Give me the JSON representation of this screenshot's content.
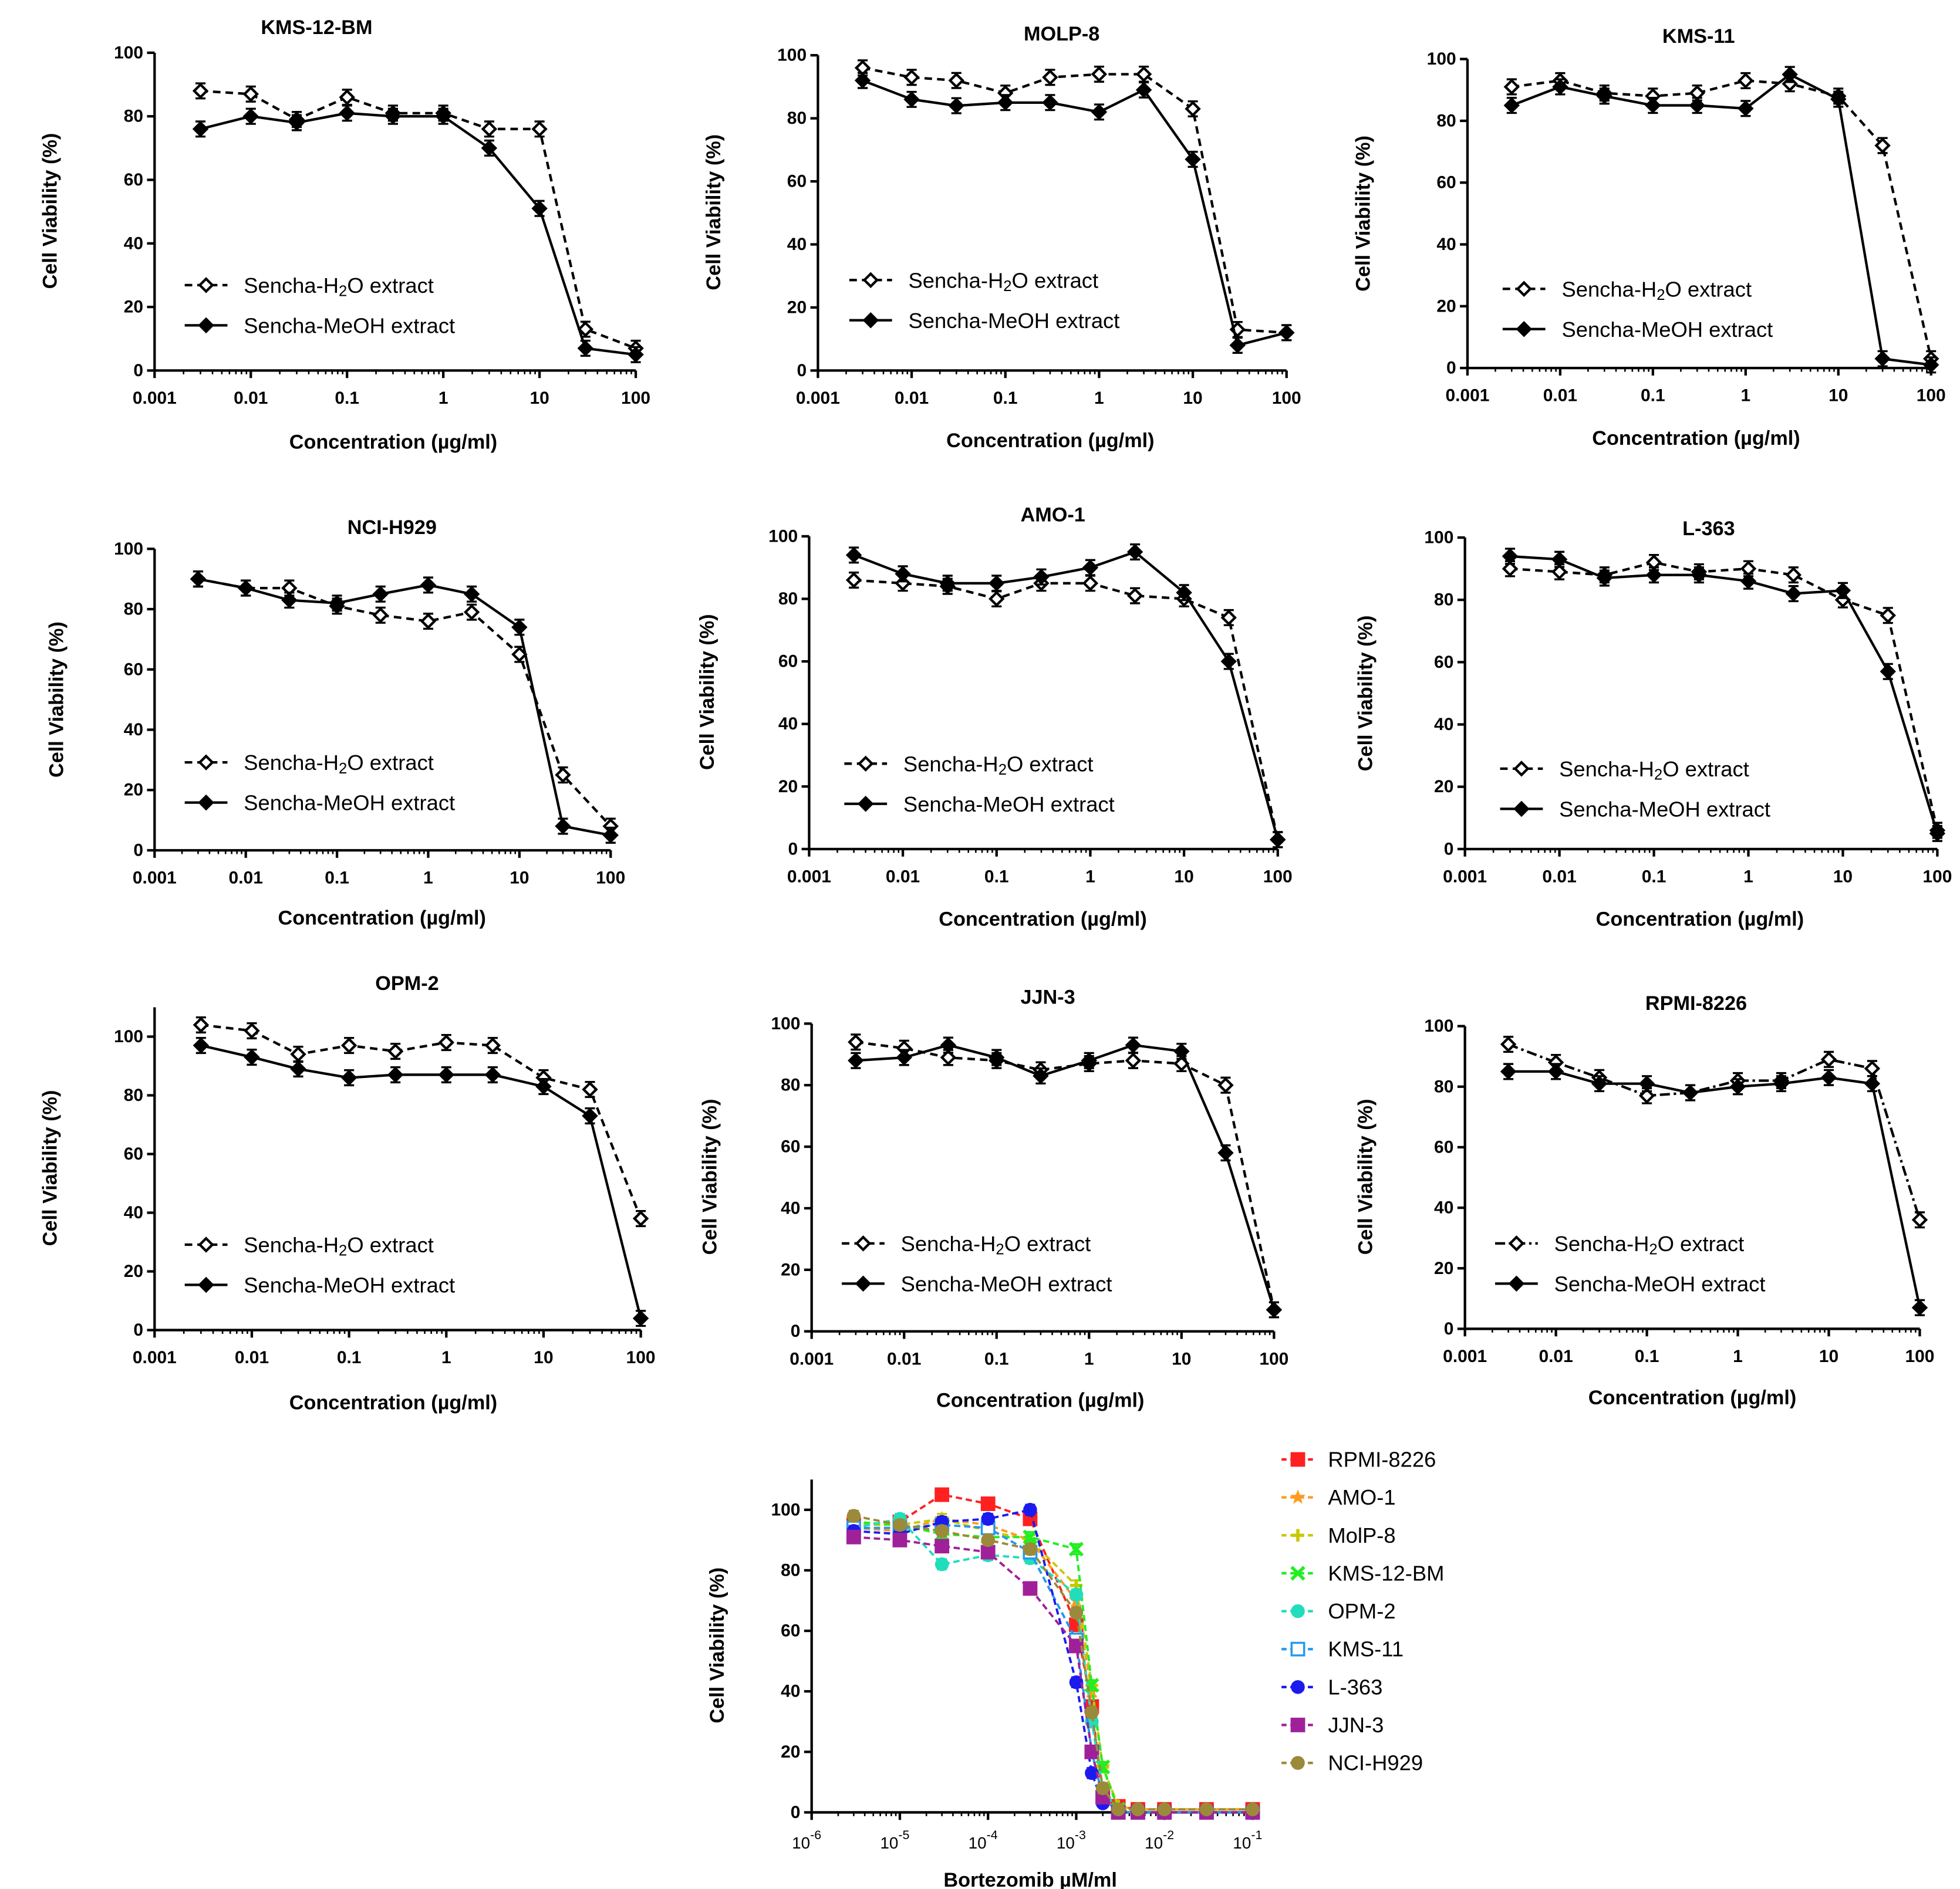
{
  "chart_data": [
    {
      "type": "line",
      "title": "KMS-12-BM",
      "xlabel": "Concentration (µg/ml)",
      "ylabel": "Cell Viability (%)",
      "xscale": "log",
      "xlim": [
        0.001,
        100
      ],
      "ylim": [
        0,
        100
      ],
      "xticks": [
        "0.001",
        "0.01",
        "0.1",
        "1",
        "10",
        "100"
      ],
      "yticks": [
        "0",
        "20",
        "40",
        "60",
        "80",
        "100"
      ],
      "legend_position": "lower-left",
      "x": [
        0.003,
        0.01,
        0.03,
        0.1,
        0.3,
        1,
        3,
        10,
        30,
        100
      ],
      "series": [
        {
          "name": "Sencha-H₂O extract",
          "legend_main": "Sencha-H",
          "legend_sub": "2",
          "legend_tail": "O extract",
          "style": "dashed",
          "marker": "open-diamond",
          "values": [
            88,
            87,
            79,
            86,
            81,
            81,
            76,
            76,
            13,
            7
          ]
        },
        {
          "name": "Sencha-MeOH extract",
          "legend_main": "Sencha-MeOH extract",
          "legend_sub": "",
          "legend_tail": "",
          "style": "solid",
          "marker": "filled-diamond",
          "values": [
            76,
            80,
            78,
            81,
            80,
            80,
            70,
            51,
            7,
            5
          ]
        }
      ]
    },
    {
      "type": "line",
      "title": "MOLP-8",
      "xlabel": "Concentration (µg/ml)",
      "ylabel": "Cell Viability (%)",
      "xscale": "log",
      "xlim": [
        0.001,
        100
      ],
      "ylim": [
        0,
        100
      ],
      "xticks": [
        "0.001",
        "0.01",
        "0.1",
        "1",
        "10",
        "100"
      ],
      "yticks": [
        "0",
        "20",
        "40",
        "60",
        "80",
        "100"
      ],
      "legend_position": "lower-left",
      "x": [
        0.003,
        0.01,
        0.03,
        0.1,
        0.3,
        1,
        3,
        10,
        30,
        100
      ],
      "series": [
        {
          "name": "Sencha-H₂O extract",
          "legend_main": "Sencha-H",
          "legend_sub": "2",
          "legend_tail": "O extract",
          "style": "dashed",
          "marker": "open-diamond",
          "values": [
            96,
            93,
            92,
            88,
            93,
            94,
            94,
            83,
            13,
            12
          ]
        },
        {
          "name": "Sencha-MeOH extract",
          "legend_main": "Sencha-MeOH extract",
          "legend_sub": "",
          "legend_tail": "",
          "style": "solid",
          "marker": "filled-diamond",
          "values": [
            92,
            86,
            84,
            85,
            85,
            82,
            89,
            67,
            8,
            12
          ]
        }
      ]
    },
    {
      "type": "line",
      "title": "KMS-11",
      "xlabel": "Concentration (µg/ml)",
      "ylabel": "Cell Viability (%)",
      "xscale": "log",
      "xlim": [
        0.001,
        100
      ],
      "ylim": [
        0,
        100
      ],
      "xticks": [
        "0.001",
        "0.01",
        "0.1",
        "1",
        "10",
        "100"
      ],
      "yticks": [
        "0",
        "20",
        "40",
        "60",
        "80",
        "100"
      ],
      "legend_position": "lower-left",
      "x": [
        0.003,
        0.01,
        0.03,
        0.1,
        0.3,
        1,
        3,
        10,
        30,
        100
      ],
      "series": [
        {
          "name": "Sencha-H₂O extract",
          "legend_main": "Sencha-H",
          "legend_sub": "2",
          "legend_tail": "O extract",
          "style": "dashed",
          "marker": "open-diamond",
          "values": [
            91,
            93,
            89,
            88,
            89,
            93,
            92,
            88,
            72,
            3
          ]
        },
        {
          "name": "Sencha-MeOH extract",
          "legend_main": "Sencha-MeOH extract",
          "legend_sub": "",
          "legend_tail": "",
          "style": "solid",
          "marker": "filled-diamond",
          "values": [
            85,
            91,
            88,
            85,
            85,
            84,
            95,
            87,
            3,
            1
          ]
        }
      ]
    },
    {
      "type": "line",
      "title": "NCI-H929",
      "xlabel": "Concentration (µg/ml)",
      "ylabel": "Cell Viability (%)",
      "xscale": "log",
      "xlim": [
        0.001,
        100
      ],
      "ylim": [
        0,
        100
      ],
      "xticks": [
        "0.001",
        "0.01",
        "0.1",
        "1",
        "10",
        "100"
      ],
      "yticks": [
        "0",
        "20",
        "40",
        "60",
        "80",
        "100"
      ],
      "legend_position": "lower-left",
      "x": [
        0.003,
        0.01,
        0.03,
        0.1,
        0.3,
        1,
        3,
        10,
        30,
        100
      ],
      "series": [
        {
          "name": "Sencha-H₂O extract",
          "legend_main": "Sencha-H",
          "legend_sub": "2",
          "legend_tail": "O extract",
          "style": "dashed",
          "marker": "open-diamond",
          "values": [
            90,
            87,
            87,
            81,
            78,
            76,
            79,
            65,
            25,
            8
          ]
        },
        {
          "name": "Sencha-MeOH extract",
          "legend_main": "Sencha-MeOH extract",
          "legend_sub": "",
          "legend_tail": "",
          "style": "solid",
          "marker": "filled-diamond",
          "values": [
            90,
            87,
            83,
            82,
            85,
            88,
            85,
            74,
            8,
            5
          ]
        }
      ]
    },
    {
      "type": "line",
      "title": "AMO-1",
      "xlabel": "Concentration (µg/ml)",
      "ylabel": "Cell Viability (%)",
      "xscale": "log",
      "xlim": [
        0.001,
        100
      ],
      "ylim": [
        0,
        100
      ],
      "xticks": [
        "0.001",
        "0.01",
        "0.1",
        "1",
        "10",
        "100"
      ],
      "yticks": [
        "0",
        "20",
        "40",
        "60",
        "80",
        "100"
      ],
      "legend_position": "lower-left",
      "x": [
        0.003,
        0.01,
        0.03,
        0.1,
        0.3,
        1,
        3,
        10,
        30,
        100
      ],
      "series": [
        {
          "name": "Sencha-H₂O extract",
          "legend_main": "Sencha-H",
          "legend_sub": "2",
          "legend_tail": "O extract",
          "style": "dashed",
          "marker": "open-diamond",
          "values": [
            86,
            85,
            84,
            80,
            85,
            85,
            81,
            80,
            74,
            3
          ]
        },
        {
          "name": "Sencha-MeOH extract",
          "legend_main": "Sencha-MeOH extract",
          "legend_sub": "",
          "legend_tail": "",
          "style": "solid",
          "marker": "filled-diamond",
          "values": [
            94,
            88,
            85,
            85,
            87,
            90,
            95,
            82,
            60,
            3
          ]
        }
      ]
    },
    {
      "type": "line",
      "title": "L-363",
      "xlabel": "Concentration (µg/ml)",
      "ylabel": "Cell Viability (%)",
      "xscale": "log",
      "xlim": [
        0.001,
        100
      ],
      "ylim": [
        0,
        100
      ],
      "xticks": [
        "0.001",
        "0.01",
        "0.1",
        "1",
        "10",
        "100"
      ],
      "yticks": [
        "0",
        "20",
        "40",
        "60",
        "80",
        "100"
      ],
      "legend_position": "lower-left",
      "x": [
        0.003,
        0.01,
        0.03,
        0.1,
        0.3,
        1,
        3,
        10,
        30,
        100
      ],
      "series": [
        {
          "name": "Sencha-H₂O extract",
          "legend_main": "Sencha-H",
          "legend_sub": "2",
          "legend_tail": "O extract",
          "style": "dashed",
          "marker": "open-diamond",
          "values": [
            90,
            89,
            88,
            92,
            89,
            90,
            88,
            80,
            75,
            6
          ]
        },
        {
          "name": "Sencha-MeOH extract",
          "legend_main": "Sencha-MeOH extract",
          "legend_sub": "",
          "legend_tail": "",
          "style": "solid",
          "marker": "filled-diamond",
          "values": [
            94,
            93,
            87,
            88,
            88,
            86,
            82,
            83,
            57,
            5
          ]
        }
      ]
    },
    {
      "type": "line",
      "title": "OPM-2",
      "xlabel": "Concentration (µg/ml)",
      "ylabel": "Cell Viability (%)",
      "xscale": "log",
      "xlim": [
        0.001,
        100
      ],
      "ylim": [
        0,
        110
      ],
      "xticks": [
        "0.001",
        "0.01",
        "0.1",
        "1",
        "10",
        "100"
      ],
      "yticks": [
        "0",
        "20",
        "40",
        "60",
        "80",
        "100"
      ],
      "legend_position": "lower-left",
      "x": [
        0.003,
        0.01,
        0.03,
        0.1,
        0.3,
        1,
        3,
        10,
        30,
        100
      ],
      "series": [
        {
          "name": "Sencha-H₂O extract",
          "legend_main": "Sencha-H",
          "legend_sub": "2",
          "legend_tail": "O extract",
          "style": "dashed",
          "marker": "open-diamond",
          "values": [
            104,
            102,
            94,
            97,
            95,
            98,
            97,
            86,
            82,
            38
          ]
        },
        {
          "name": "Sencha-MeOH extract",
          "legend_main": "Sencha-MeOH extract",
          "legend_sub": "",
          "legend_tail": "",
          "style": "solid",
          "marker": "filled-diamond",
          "values": [
            97,
            93,
            89,
            86,
            87,
            87,
            87,
            83,
            73,
            4
          ]
        }
      ]
    },
    {
      "type": "line",
      "title": "JJN-3",
      "xlabel": "Concentration (µg/ml)",
      "ylabel": "Cell Viability (%)",
      "xscale": "log",
      "xlim": [
        0.001,
        100
      ],
      "ylim": [
        0,
        100
      ],
      "xticks": [
        "0.001",
        "0.01",
        "0.1",
        "1",
        "10",
        "100"
      ],
      "yticks": [
        "0",
        "20",
        "40",
        "60",
        "80",
        "100"
      ],
      "legend_position": "lower-left",
      "x": [
        0.003,
        0.01,
        0.03,
        0.1,
        0.3,
        1,
        3,
        10,
        30,
        100
      ],
      "series": [
        {
          "name": "Sencha-H₂O extract",
          "legend_main": "Sencha-H",
          "legend_sub": "2",
          "legend_tail": "O extract",
          "style": "dashed",
          "marker": "open-diamond",
          "values": [
            94,
            92,
            89,
            88,
            85,
            87,
            88,
            87,
            80,
            7
          ]
        },
        {
          "name": "Sencha-MeOH extract",
          "legend_main": "Sencha-MeOH extract",
          "legend_sub": "",
          "legend_tail": "",
          "style": "solid",
          "marker": "filled-diamond",
          "values": [
            88,
            89,
            93,
            89,
            83,
            88,
            93,
            91,
            58,
            7
          ]
        }
      ]
    },
    {
      "type": "line",
      "title": "RPMI-8226",
      "xlabel": "Concentration (µg/ml)",
      "ylabel": "Cell Viability (%)",
      "xscale": "log",
      "xlim": [
        0.001,
        100
      ],
      "ylim": [
        0,
        100
      ],
      "xticks": [
        "0.001",
        "0.01",
        "0.1",
        "1",
        "10",
        "100"
      ],
      "yticks": [
        "0",
        "20",
        "40",
        "60",
        "80",
        "100"
      ],
      "legend_position": "lower-left",
      "x": [
        0.003,
        0.01,
        0.03,
        0.1,
        0.3,
        1,
        3,
        10,
        30,
        100
      ],
      "series": [
        {
          "name": "Sencha-H₂O extract",
          "legend_main": "Sencha-H",
          "legend_sub": "2",
          "legend_tail": "O extract",
          "style": "dash-dot",
          "marker": "open-diamond",
          "values": [
            94,
            88,
            83,
            77,
            78,
            82,
            82,
            89,
            86,
            36
          ]
        },
        {
          "name": "Sencha-MeOH extract",
          "legend_main": "Sencha-MeOH extract",
          "legend_sub": "",
          "legend_tail": "",
          "style": "solid",
          "marker": "filled-diamond",
          "values": [
            85,
            85,
            81,
            81,
            78,
            80,
            81,
            83,
            81,
            7
          ]
        }
      ]
    },
    {
      "type": "line",
      "title": "",
      "xlabel": "Bortezomib µM/ml",
      "ylabel": "Cell Viability (%)",
      "xscale": "log",
      "xlim": [
        1e-06,
        0.1
      ],
      "ylim": [
        0,
        110
      ],
      "xticks_base": "10",
      "xticks_exp": [
        "-6",
        "-5",
        "-4",
        "-3",
        "-2",
        "-1"
      ],
      "yticks": [
        "0",
        "20",
        "40",
        "60",
        "80",
        "100"
      ],
      "legend_position": "outside-right",
      "x": [
        3e-06,
        1e-05,
        3e-05,
        0.0001,
        0.0003,
        0.001,
        0.0015,
        0.002,
        0.003,
        0.005,
        0.01,
        0.03,
        0.1
      ],
      "series": [
        {
          "name": "RPMI-8226",
          "color": "#ff2020",
          "marker": "square",
          "values": [
            95,
            96,
            105,
            102,
            97,
            62,
            35,
            5,
            2,
            1,
            1,
            1,
            1
          ]
        },
        {
          "name": "AMO-1",
          "color": "#ff9a1f",
          "marker": "star",
          "values": [
            94,
            93,
            97,
            95,
            90,
            70,
            40,
            15,
            2,
            1,
            1,
            1,
            1
          ]
        },
        {
          "name": "MolP-8",
          "color": "#c8c800",
          "marker": "plus",
          "values": [
            95,
            95,
            97,
            93,
            90,
            75,
            42,
            15,
            2,
            1,
            1,
            1,
            1
          ]
        },
        {
          "name": "KMS-12-BM",
          "color": "#22ee22",
          "marker": "cross",
          "values": [
            96,
            95,
            92,
            91,
            91,
            87,
            42,
            15,
            1,
            0,
            0,
            0,
            0
          ]
        },
        {
          "name": "OPM-2",
          "color": "#22ddbb",
          "marker": "circle",
          "values": [
            94,
            97,
            82,
            85,
            84,
            72,
            30,
            8,
            0,
            0,
            0,
            0,
            0
          ]
        },
        {
          "name": "KMS-11",
          "color": "#2299ee",
          "marker": "open-square",
          "values": [
            94,
            94,
            95,
            94,
            86,
            57,
            20,
            5,
            0,
            0,
            0,
            0,
            0
          ]
        },
        {
          "name": "L-363",
          "color": "#1b1bee",
          "marker": "circle",
          "values": [
            93,
            92,
            96,
            97,
            100,
            43,
            13,
            3,
            0,
            0,
            0,
            0,
            0
          ]
        },
        {
          "name": "JJN-3",
          "color": "#a0209a",
          "marker": "square",
          "values": [
            91,
            90,
            88,
            86,
            74,
            55,
            20,
            5,
            0,
            0,
            0,
            0,
            0
          ]
        },
        {
          "name": "NCI-H929",
          "color": "#9a8a3a",
          "marker": "circle",
          "values": [
            98,
            95,
            93,
            90,
            87,
            66,
            33,
            8,
            1,
            1,
            1,
            1,
            1
          ]
        }
      ]
    }
  ]
}
